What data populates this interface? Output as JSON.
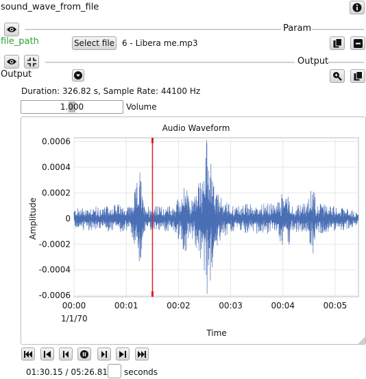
{
  "node": {
    "title": "sound_wave_from_file",
    "info_icon": "info-icon"
  },
  "param_section": {
    "label": "Param",
    "port_label": "file_path",
    "select_button_label": "Select file",
    "file_name": "6 - Libera me.mp3"
  },
  "output_section": {
    "label": "Output",
    "port_label": "Output"
  },
  "info": {
    "text": "Duration: 326.82 s, Sample Rate: 44100 Hz"
  },
  "volume": {
    "value": "1.000",
    "label": "Volume"
  },
  "chart_data": {
    "type": "line",
    "title": "Audio Waveform",
    "xlabel": "Time",
    "ylabel": "Amplitude",
    "x_ticks": [
      "00:00",
      "00:01",
      "00:02",
      "00:03",
      "00:04",
      "00:05"
    ],
    "x_date_label": "1/1/70",
    "y_ticks": [
      "0.0006",
      "0.0004",
      "0.0002",
      "0",
      "-0.0002",
      "-0.0004",
      "-0.0006"
    ],
    "y_tick_values": [
      0.0006,
      0.0004,
      0.0002,
      0,
      -0.0002,
      -0.0004,
      -0.0006
    ],
    "ylim": [
      -0.00061,
      0.00063
    ],
    "xlim_seconds": [
      0,
      326.82
    ],
    "playhead_seconds": 90.15,
    "series_color": "#4a6fb5",
    "playhead_color": "#e02020",
    "envelope": [
      {
        "t": 0,
        "a": 8e-05
      },
      {
        "t": 20,
        "a": 0.0001
      },
      {
        "t": 35,
        "a": 9e-05
      },
      {
        "t": 48,
        "a": 0.00012
      },
      {
        "t": 58,
        "a": 0.0001
      },
      {
        "t": 65,
        "a": 0.00011
      },
      {
        "t": 73,
        "a": 0.0003
      },
      {
        "t": 76,
        "a": 0.0004
      },
      {
        "t": 80,
        "a": 0.00011
      },
      {
        "t": 95,
        "a": 0.0001
      },
      {
        "t": 115,
        "a": 0.0001
      },
      {
        "t": 128,
        "a": 0.0003
      },
      {
        "t": 133,
        "a": 0.00011
      },
      {
        "t": 145,
        "a": 0.00034
      },
      {
        "t": 150,
        "a": 0.0005
      },
      {
        "t": 152,
        "a": 0.00063
      },
      {
        "t": 156,
        "a": 0.00052
      },
      {
        "t": 162,
        "a": 0.00024
      },
      {
        "t": 170,
        "a": 0.00015
      },
      {
        "t": 185,
        "a": 0.0001
      },
      {
        "t": 200,
        "a": 0.00012
      },
      {
        "t": 218,
        "a": 0.00012
      },
      {
        "t": 232,
        "a": 0.00012
      },
      {
        "t": 245,
        "a": 0.00028
      },
      {
        "t": 250,
        "a": 0.00011
      },
      {
        "t": 268,
        "a": 0.00012
      },
      {
        "t": 275,
        "a": 0.0003
      },
      {
        "t": 280,
        "a": 0.00012
      },
      {
        "t": 300,
        "a": 0.0001
      },
      {
        "t": 312,
        "a": 9e-05
      },
      {
        "t": 325,
        "a": 5e-05
      }
    ]
  },
  "playback": {
    "position": "01:30.15 / 05:26.81",
    "unit_label": "seconds",
    "buttons": [
      "skip-to-start-icon",
      "step-back-icon",
      "prev-icon",
      "pause-icon",
      "next-icon",
      "step-forward-icon",
      "skip-to-end-icon"
    ]
  },
  "colors": {
    "port_label": "#2e9f2e",
    "waveform": "#4a6fb5",
    "playhead": "#e02020"
  }
}
